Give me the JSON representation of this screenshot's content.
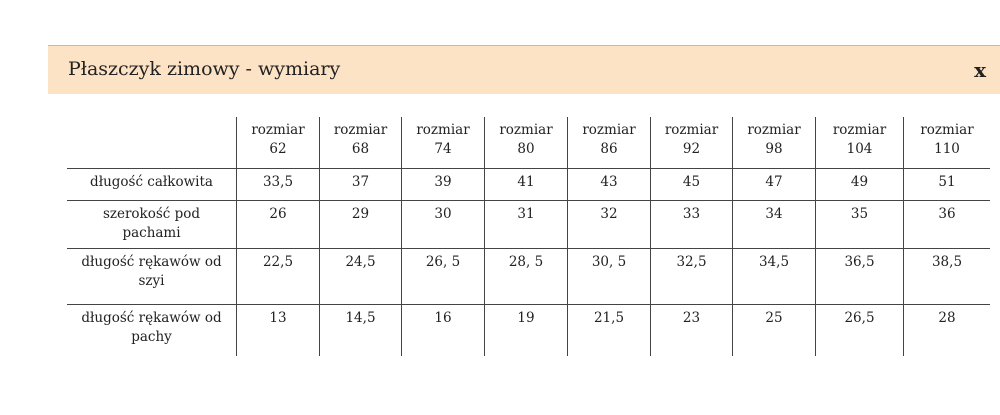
{
  "dialog": {
    "title": "Płaszczyk zimowy - wymiary",
    "close_label": "x"
  },
  "table": {
    "headers": [
      "rozmiar 62",
      "rozmiar 68",
      "rozmiar 74",
      "rozmiar 80",
      "rozmiar 86",
      "rozmiar 92",
      "rozmiar 98",
      "rozmiar 104",
      "rozmiar 110"
    ],
    "rows": [
      {
        "label": "długość całkowita",
        "values": [
          "33,5",
          "37",
          "39",
          "41",
          "43",
          "45",
          "47",
          "49",
          "51"
        ]
      },
      {
        "label": "szerokość pod pachami",
        "values": [
          "26",
          "29",
          "30",
          "31",
          "32",
          "33",
          "34",
          "35",
          "36"
        ]
      },
      {
        "label": "długość rękawów od szyi",
        "values": [
          "22,5",
          "24,5",
          "26, 5",
          "28, 5",
          "30, 5",
          "32,5",
          "34,5",
          "36,5",
          "38,5"
        ]
      },
      {
        "label": "długość rękawów od pachy",
        "values": [
          "13",
          "14,5",
          "16",
          "19",
          "21,5",
          "23",
          "25",
          "26,5",
          "28"
        ]
      }
    ]
  }
}
